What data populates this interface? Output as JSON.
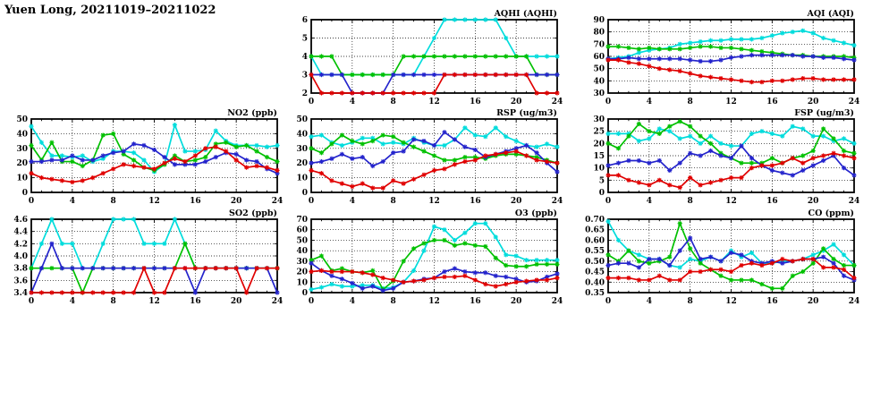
{
  "title": "Yuen Long, 20211019–20211022",
  "chart_style": {
    "colors": {
      "red": "#e00000",
      "blue": "#2424cc",
      "green": "#00c000",
      "cyan": "#00dcdc"
    },
    "axis_color": "#000000",
    "grid": "dotted",
    "marker": "asterisk",
    "xlabel_hours": "hour of day 0-24"
  },
  "chart_data": [
    {
      "type": "line",
      "title": "AQHI (AQHI)",
      "cell": 0,
      "xlim": [
        0,
        24
      ],
      "xticks": [
        0,
        4,
        8,
        12,
        16,
        20,
        24
      ],
      "ylim": [
        2,
        6
      ],
      "yticks": [
        2,
        3,
        4,
        5,
        6
      ],
      "ydec": 0,
      "series": [
        {
          "color": "cyan",
          "values": [
            4,
            3,
            3,
            3,
            3,
            3,
            3,
            3,
            3,
            3,
            3,
            4,
            5,
            6,
            6,
            6,
            6,
            6,
            6,
            5,
            4,
            4,
            4,
            4,
            4
          ]
        },
        {
          "color": "green",
          "values": [
            4,
            4,
            4,
            3,
            3,
            3,
            3,
            3,
            3,
            4,
            4,
            4,
            4,
            4,
            4,
            4,
            4,
            4,
            4,
            4,
            4,
            4,
            3,
            3,
            3
          ]
        },
        {
          "color": "blue",
          "values": [
            3,
            3,
            3,
            3,
            2,
            2,
            2,
            2,
            3,
            3,
            3,
            3,
            3,
            3,
            3,
            3,
            3,
            3,
            3,
            3,
            3,
            3,
            3,
            3,
            3
          ]
        },
        {
          "color": "red",
          "values": [
            3,
            2,
            2,
            2,
            2,
            2,
            2,
            2,
            2,
            2,
            2,
            2,
            2,
            3,
            3,
            3,
            3,
            3,
            3,
            3,
            3,
            3,
            2,
            2,
            2
          ]
        }
      ]
    },
    {
      "type": "line",
      "title": "AQI (AQI)",
      "cell": 1,
      "xlim": [
        0,
        24
      ],
      "xticks": [
        0,
        4,
        8,
        12,
        16,
        20,
        24
      ],
      "ylim": [
        30,
        90
      ],
      "yticks": [
        30,
        40,
        50,
        60,
        70,
        80,
        90
      ],
      "ydec": 0,
      "series": [
        {
          "color": "cyan",
          "values": [
            58,
            59,
            60,
            63,
            65,
            66,
            67,
            70,
            71,
            72,
            73,
            73,
            74,
            74,
            74,
            75,
            77,
            79,
            80,
            81,
            79,
            75,
            73,
            71,
            69
          ]
        },
        {
          "color": "green",
          "values": [
            68,
            68,
            67,
            66,
            67,
            66,
            66,
            66,
            67,
            68,
            68,
            67,
            67,
            66,
            65,
            64,
            63,
            62,
            61,
            61,
            60,
            60,
            60,
            60,
            59
          ]
        },
        {
          "color": "blue",
          "values": [
            58,
            58,
            59,
            58,
            58,
            58,
            58,
            58,
            57,
            56,
            56,
            57,
            59,
            60,
            61,
            61,
            61,
            61,
            61,
            60,
            60,
            59,
            59,
            58,
            57
          ]
        },
        {
          "color": "red",
          "values": [
            57,
            57,
            55,
            54,
            52,
            50,
            49,
            48,
            46,
            44,
            43,
            42,
            41,
            40,
            39,
            39,
            40,
            40,
            41,
            42,
            42,
            41,
            41,
            41,
            41
          ]
        }
      ]
    },
    {
      "type": "line",
      "title": "NO2 (ppb)",
      "cell": 2,
      "xlim": [
        0,
        24
      ],
      "xticks": [
        0,
        4,
        8,
        12,
        16,
        20,
        24
      ],
      "ylim": [
        0,
        50
      ],
      "yticks": [
        0,
        10,
        20,
        30,
        40,
        50
      ],
      "ydec": 0,
      "series": [
        {
          "color": "cyan",
          "values": [
            45,
            34,
            25,
            25,
            24,
            25,
            21,
            23,
            28,
            28,
            27,
            22,
            14,
            19,
            46,
            28,
            28,
            29,
            42,
            35,
            32,
            32,
            32,
            31,
            32
          ]
        },
        {
          "color": "green",
          "values": [
            32,
            22,
            34,
            21,
            21,
            18,
            22,
            39,
            40,
            26,
            22,
            17,
            15,
            19,
            25,
            21,
            22,
            24,
            33,
            34,
            31,
            32,
            28,
            24,
            21
          ]
        },
        {
          "color": "blue",
          "values": [
            21,
            21,
            22,
            22,
            25,
            22,
            22,
            25,
            27,
            28,
            33,
            32,
            29,
            24,
            19,
            19,
            19,
            21,
            24,
            27,
            26,
            22,
            21,
            16,
            13
          ]
        },
        {
          "color": "red",
          "values": [
            13,
            10,
            9,
            8,
            7,
            8,
            10,
            13,
            16,
            19,
            18,
            17,
            16,
            20,
            23,
            21,
            25,
            30,
            31,
            28,
            22,
            17,
            18,
            17,
            15
          ]
        }
      ]
    },
    {
      "type": "line",
      "title": "RSP (ug/m3)",
      "cell": 3,
      "xlim": [
        0,
        24
      ],
      "xticks": [
        0,
        4,
        8,
        12,
        16,
        20,
        24
      ],
      "ylim": [
        0,
        50
      ],
      "yticks": [
        0,
        10,
        20,
        30,
        40,
        50
      ],
      "ydec": 0,
      "series": [
        {
          "color": "cyan",
          "values": [
            38,
            39,
            34,
            32,
            34,
            37,
            37,
            33,
            34,
            33,
            37,
            34,
            32,
            32,
            36,
            44,
            39,
            38,
            44,
            38,
            35,
            32,
            31,
            33,
            31
          ]
        },
        {
          "color": "green",
          "values": [
            30,
            27,
            33,
            39,
            35,
            33,
            35,
            39,
            38,
            34,
            31,
            28,
            25,
            22,
            22,
            24,
            24,
            23,
            25,
            26,
            26,
            25,
            24,
            22,
            20
          ]
        },
        {
          "color": "blue",
          "values": [
            20,
            21,
            23,
            26,
            23,
            24,
            18,
            21,
            27,
            28,
            36,
            35,
            32,
            41,
            36,
            31,
            29,
            24,
            26,
            28,
            30,
            32,
            27,
            20,
            14
          ]
        },
        {
          "color": "red",
          "values": [
            15,
            13,
            8,
            6,
            4,
            6,
            3,
            3,
            8,
            6,
            9,
            12,
            15,
            16,
            19,
            21,
            22,
            25,
            26,
            27,
            28,
            25,
            22,
            21,
            20
          ]
        }
      ]
    },
    {
      "type": "line",
      "title": "FSP (ug/m3)",
      "cell": 4,
      "xlim": [
        0,
        24
      ],
      "xticks": [
        0,
        4,
        8,
        12,
        16,
        20,
        24
      ],
      "ylim": [
        0,
        30
      ],
      "yticks": [
        0,
        5,
        10,
        15,
        20,
        25,
        30
      ],
      "ydec": 0,
      "series": [
        {
          "color": "cyan",
          "values": [
            24,
            24,
            24,
            21,
            22,
            26,
            25,
            22,
            23,
            20,
            23,
            20,
            19,
            19,
            24,
            25,
            24,
            23,
            27,
            26,
            23,
            23,
            21,
            22,
            20
          ]
        },
        {
          "color": "green",
          "values": [
            20,
            18,
            23,
            28,
            25,
            24,
            27,
            29,
            27,
            23,
            20,
            16,
            14,
            12,
            12,
            12,
            14,
            12,
            14,
            15,
            17,
            26,
            22,
            17,
            16
          ]
        },
        {
          "color": "blue",
          "values": [
            11,
            12,
            13,
            13,
            12,
            13,
            9,
            12,
            16,
            15,
            17,
            15,
            14,
            19,
            14,
            11,
            9,
            8,
            7,
            9,
            11,
            13,
            15,
            10,
            7
          ]
        },
        {
          "color": "red",
          "values": [
            7,
            7,
            5,
            4,
            3,
            5,
            3,
            2,
            6,
            3,
            4,
            5,
            6,
            6,
            10,
            11,
            11,
            12,
            14,
            12,
            14,
            15,
            16,
            15,
            14
          ]
        }
      ]
    },
    {
      "type": "line",
      "title": "SO2 (ppb)",
      "cell": 5,
      "xlim": [
        0,
        24
      ],
      "xticks": [
        0,
        4,
        8,
        12,
        16,
        20,
        24
      ],
      "ylim": [
        3.4,
        4.6
      ],
      "yticks": [
        3.4,
        3.6,
        3.8,
        4.0,
        4.2,
        4.4,
        4.6
      ],
      "ydec": 1,
      "series": [
        {
          "color": "cyan",
          "values": [
            3.8,
            4.2,
            4.6,
            4.2,
            4.2,
            3.8,
            3.8,
            4.2,
            4.6,
            4.6,
            4.6,
            4.2,
            4.2,
            4.2,
            4.6,
            4.2,
            3.8,
            3.8,
            3.8,
            3.8,
            3.8,
            3.8,
            3.8,
            3.8,
            3.8
          ]
        },
        {
          "color": "green",
          "values": [
            3.8,
            3.8,
            3.8,
            3.8,
            3.8,
            3.4,
            3.8,
            3.8,
            3.8,
            3.8,
            3.8,
            3.8,
            3.8,
            3.8,
            3.8,
            4.2,
            3.8,
            3.8,
            3.8,
            3.8,
            3.8,
            3.8,
            3.8,
            3.8,
            3.8
          ]
        },
        {
          "color": "blue",
          "values": [
            3.4,
            3.8,
            4.2,
            3.8,
            3.8,
            3.8,
            3.8,
            3.8,
            3.8,
            3.8,
            3.8,
            3.8,
            3.8,
            3.8,
            3.8,
            3.8,
            3.4,
            3.8,
            3.8,
            3.8,
            3.8,
            3.8,
            3.8,
            3.8,
            3.4
          ]
        },
        {
          "color": "red",
          "values": [
            3.4,
            3.4,
            3.4,
            3.4,
            3.4,
            3.4,
            3.4,
            3.4,
            3.4,
            3.4,
            3.4,
            3.8,
            3.4,
            3.4,
            3.8,
            3.8,
            3.8,
            3.8,
            3.8,
            3.8,
            3.8,
            3.4,
            3.8,
            3.8,
            3.8
          ]
        }
      ]
    },
    {
      "type": "line",
      "title": "O3 (ppb)",
      "cell": 6,
      "xlim": [
        0,
        24
      ],
      "xticks": [
        0,
        4,
        8,
        12,
        16,
        20,
        24
      ],
      "ylim": [
        0,
        70
      ],
      "yticks": [
        0,
        10,
        20,
        30,
        40,
        50,
        60,
        70
      ],
      "ydec": 0,
      "series": [
        {
          "color": "cyan",
          "values": [
            3,
            5,
            8,
            6,
            6,
            7,
            7,
            4,
            5,
            10,
            21,
            40,
            63,
            60,
            50,
            57,
            66,
            66,
            53,
            36,
            35,
            31,
            31,
            31,
            31
          ]
        },
        {
          "color": "green",
          "values": [
            31,
            35,
            21,
            23,
            20,
            19,
            21,
            3,
            11,
            30,
            42,
            47,
            50,
            50,
            45,
            47,
            45,
            44,
            33,
            26,
            25,
            25,
            27,
            27,
            27
          ]
        },
        {
          "color": "blue",
          "values": [
            28,
            21,
            16,
            13,
            9,
            4,
            6,
            2,
            4,
            10,
            11,
            13,
            14,
            20,
            23,
            20,
            19,
            19,
            16,
            15,
            13,
            10,
            11,
            15,
            18
          ]
        },
        {
          "color": "red",
          "values": [
            20,
            21,
            20,
            20,
            20,
            19,
            17,
            14,
            12,
            10,
            11,
            12,
            14,
            15,
            15,
            16,
            12,
            8,
            6,
            8,
            10,
            11,
            12,
            12,
            14
          ]
        }
      ]
    },
    {
      "type": "line",
      "title": "CO (ppm)",
      "cell": 7,
      "xlim": [
        0,
        24
      ],
      "xticks": [
        0,
        4,
        8,
        12,
        16,
        20,
        24
      ],
      "ylim": [
        0.35,
        0.7
      ],
      "yticks": [
        0.35,
        0.4,
        0.45,
        0.5,
        0.55,
        0.6,
        0.65,
        0.7
      ],
      "ydec": 2,
      "series": [
        {
          "color": "cyan",
          "values": [
            0.69,
            0.6,
            0.55,
            0.53,
            0.51,
            0.51,
            0.48,
            0.47,
            0.51,
            0.5,
            0.52,
            0.5,
            0.55,
            0.52,
            0.54,
            0.49,
            0.49,
            0.5,
            0.5,
            0.51,
            0.53,
            0.55,
            0.58,
            0.53,
            0.48
          ]
        },
        {
          "color": "green",
          "values": [
            0.53,
            0.5,
            0.55,
            0.5,
            0.49,
            0.5,
            0.52,
            0.68,
            0.56,
            0.49,
            0.46,
            0.43,
            0.41,
            0.41,
            0.41,
            0.39,
            0.37,
            0.37,
            0.43,
            0.45,
            0.49,
            0.56,
            0.51,
            0.48,
            0.48
          ]
        },
        {
          "color": "blue",
          "values": [
            0.48,
            0.49,
            0.49,
            0.47,
            0.51,
            0.51,
            0.48,
            0.55,
            0.61,
            0.51,
            0.52,
            0.5,
            0.54,
            0.53,
            0.5,
            0.49,
            0.5,
            0.49,
            0.5,
            0.51,
            0.51,
            0.52,
            0.49,
            0.43,
            0.41
          ]
        },
        {
          "color": "red",
          "values": [
            0.42,
            0.42,
            0.42,
            0.41,
            0.41,
            0.43,
            0.41,
            0.41,
            0.45,
            0.45,
            0.46,
            0.46,
            0.45,
            0.48,
            0.49,
            0.48,
            0.49,
            0.51,
            0.5,
            0.51,
            0.51,
            0.47,
            0.47,
            0.46,
            0.42
          ]
        }
      ]
    }
  ]
}
